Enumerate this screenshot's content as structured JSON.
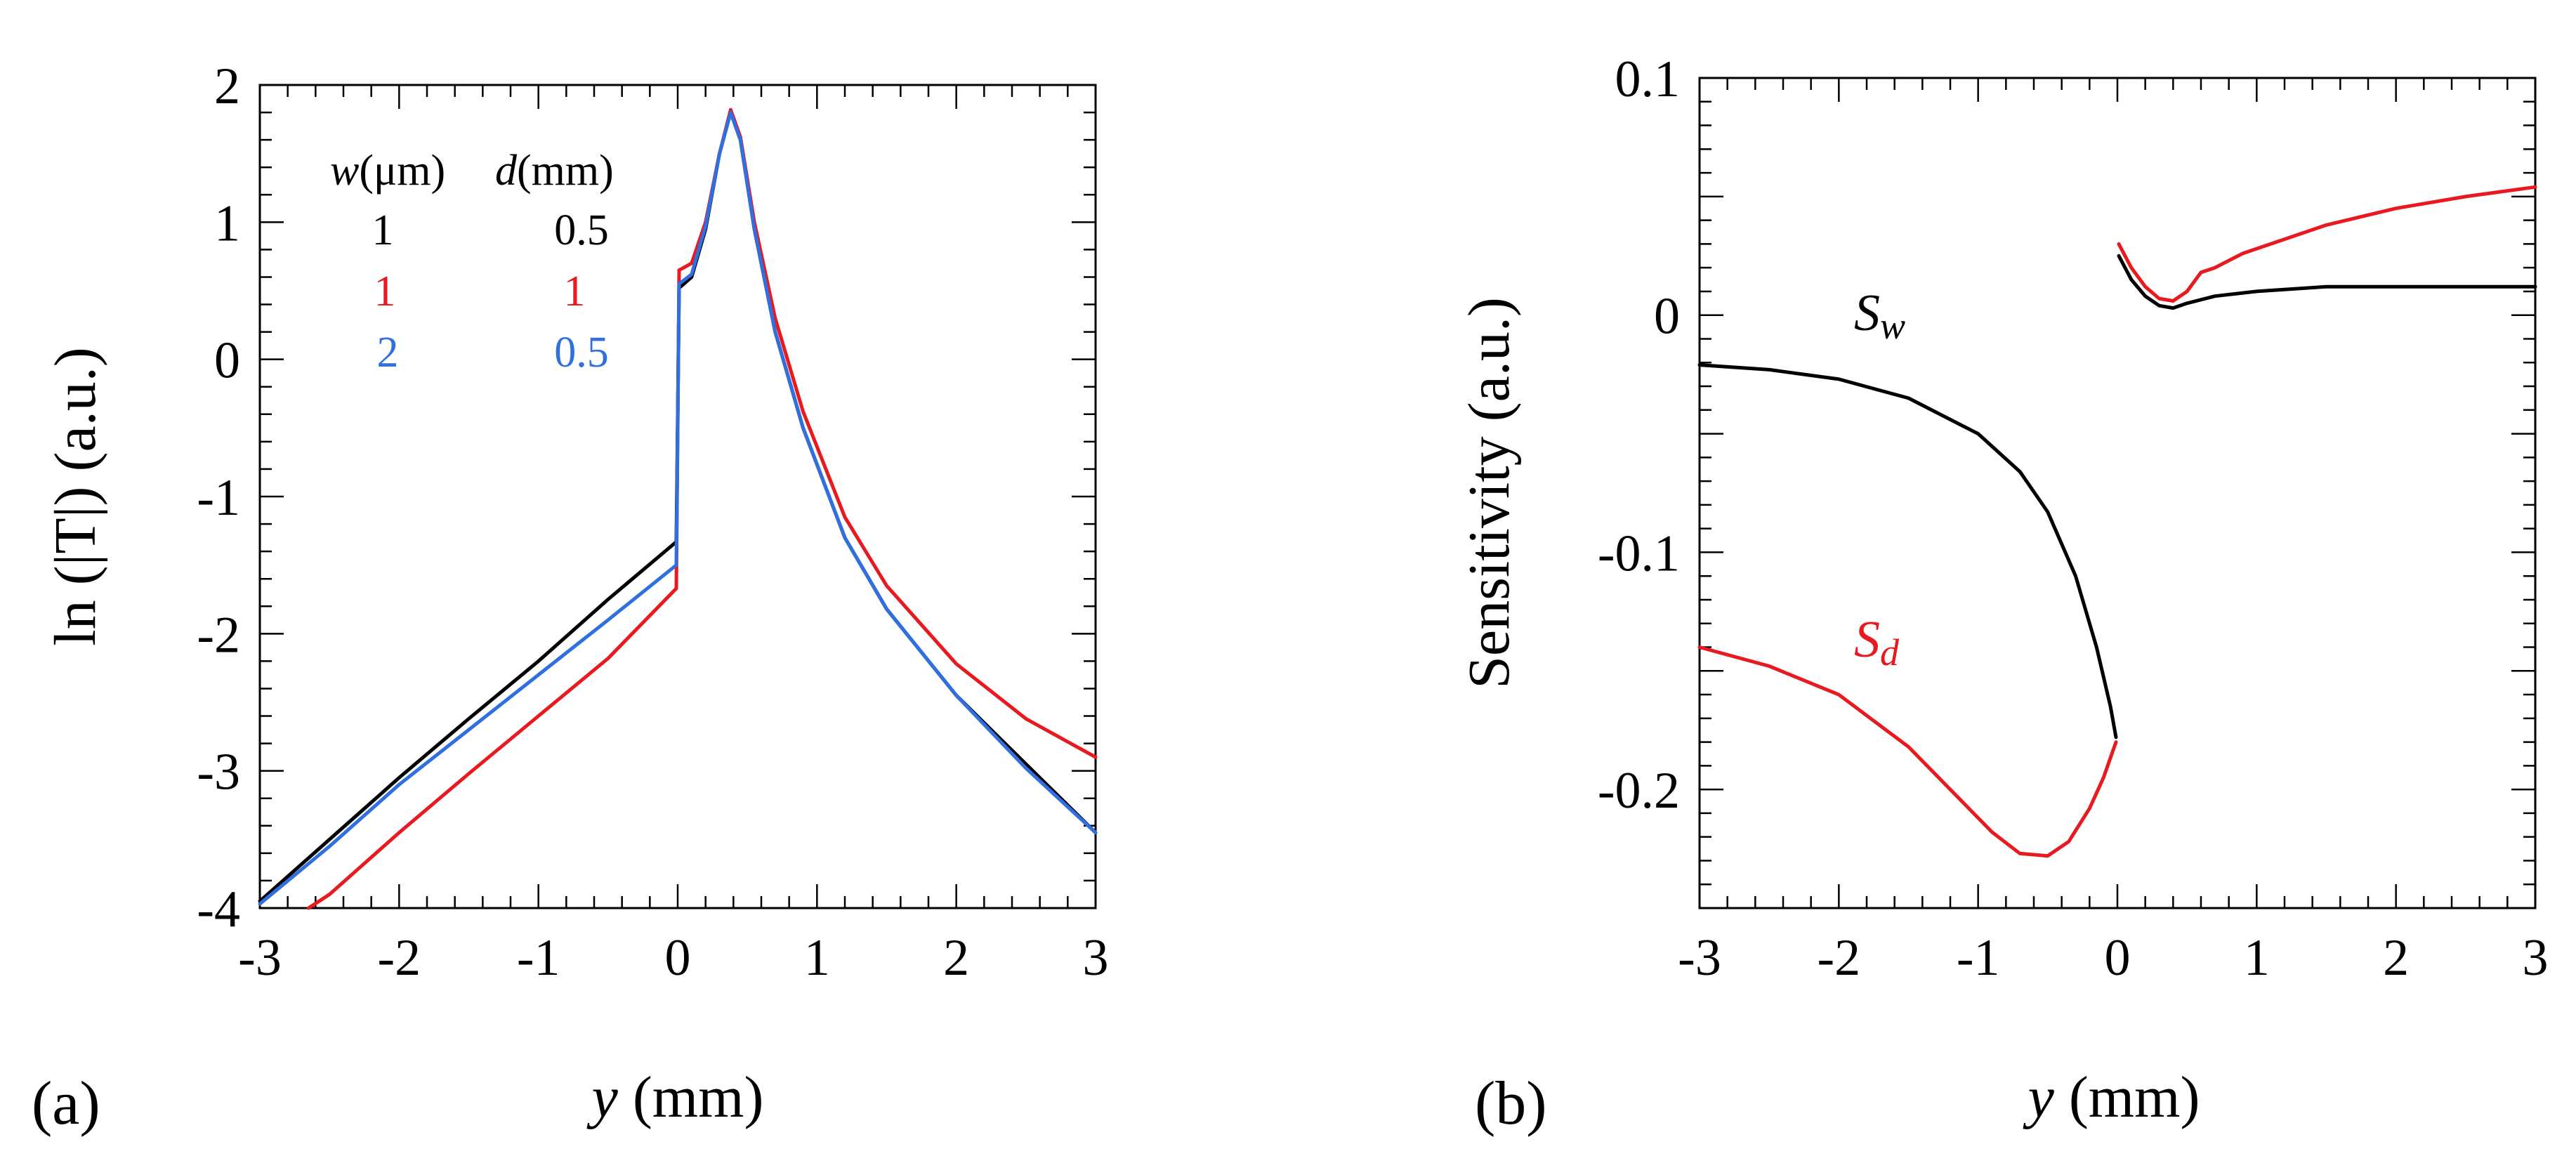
{
  "chart_data": [
    {
      "type": "line",
      "panel_label": "(a)",
      "xlabel_var": "y",
      "xlabel_unit": " (mm)",
      "ylabel": "ln (|T|) (a.u.)",
      "xlim": [
        -3,
        3
      ],
      "ylim": [
        -4,
        2
      ],
      "xticks": [
        -3,
        -2,
        -1,
        0,
        1,
        2,
        3
      ],
      "yticks": [
        -4,
        -3,
        -2,
        -1,
        0,
        1,
        2
      ],
      "legend": {
        "header_w_var": "w",
        "header_w_unit": "(μm)",
        "header_d_var": "d",
        "header_d_unit": "(mm)",
        "rows": [
          {
            "w": "1",
            "d": "0.5",
            "color": "#000000"
          },
          {
            "w": "1",
            "d": "1",
            "color": "#e8191f"
          },
          {
            "w": "2",
            "d": "0.5",
            "color": "#2f6fe0"
          }
        ]
      },
      "series": [
        {
          "name": "w=1, d=0.5",
          "color": "#000000",
          "x": [
            -3,
            -2.5,
            -2,
            -1.5,
            -1,
            -0.5,
            -0.01,
            0.01,
            0.1,
            0.2,
            0.3,
            0.38,
            0.45,
            0.55,
            0.7,
            0.9,
            1.2,
            1.5,
            2,
            2.5,
            3
          ],
          "y": [
            -3.95,
            -3.5,
            -3.05,
            -2.62,
            -2.2,
            -1.75,
            -1.33,
            0.52,
            0.6,
            0.95,
            1.5,
            1.8,
            1.6,
            0.95,
            0.2,
            -0.5,
            -1.3,
            -1.82,
            -2.45,
            -2.95,
            -3.45
          ]
        },
        {
          "name": "w=1, d=1",
          "color": "#e8191f",
          "x": [
            -2.65,
            -2.5,
            -2,
            -1.5,
            -1,
            -0.5,
            -0.01,
            0.01,
            0.1,
            0.2,
            0.3,
            0.38,
            0.45,
            0.55,
            0.7,
            0.9,
            1.2,
            1.5,
            2,
            2.5,
            3
          ],
          "y": [
            -4,
            -3.9,
            -3.45,
            -3.02,
            -2.6,
            -2.18,
            -1.67,
            0.65,
            0.7,
            1.0,
            1.5,
            1.82,
            1.62,
            1.0,
            0.3,
            -0.38,
            -1.15,
            -1.65,
            -2.22,
            -2.62,
            -2.9
          ]
        },
        {
          "name": "w=2, d=0.5",
          "color": "#2f6fe0",
          "x": [
            -3,
            -2.5,
            -2,
            -1.5,
            -1,
            -0.5,
            -0.01,
            0.01,
            0.1,
            0.2,
            0.3,
            0.38,
            0.45,
            0.55,
            0.7,
            0.9,
            1.2,
            1.5,
            2,
            2.5,
            3
          ],
          "y": [
            -3.97,
            -3.55,
            -3.1,
            -2.7,
            -2.3,
            -1.9,
            -1.5,
            0.55,
            0.62,
            0.97,
            1.5,
            1.8,
            1.6,
            0.95,
            0.2,
            -0.5,
            -1.3,
            -1.82,
            -2.45,
            -2.98,
            -3.45
          ]
        }
      ]
    },
    {
      "type": "line",
      "panel_label": "(b)",
      "xlabel_var": "y",
      "xlabel_unit": " (mm)",
      "ylabel": "Sensitivity (a.u.)",
      "xlim": [
        -3,
        3
      ],
      "ylim": [
        -0.25,
        0.1
      ],
      "xticks": [
        -3,
        -2,
        -1,
        0,
        1,
        2,
        3
      ],
      "yticks": [
        -0.2,
        -0.1,
        0,
        0.1
      ],
      "ytick_labels": [
        "-0.2",
        "-0.1",
        "0",
        "0.1"
      ],
      "annotations": [
        {
          "text": "S",
          "sub": "w",
          "x": -2.0,
          "y": 0.0,
          "color": "#000000"
        },
        {
          "text": "S",
          "sub": "d",
          "x": -2.0,
          "y": -0.138,
          "color": "#e8191f"
        }
      ],
      "series": [
        {
          "name": "S_w",
          "color": "#000000",
          "segments": [
            {
              "x": [
                -3,
                -2.5,
                -2,
                -1.5,
                -1,
                -0.7,
                -0.5,
                -0.3,
                -0.15,
                -0.05,
                -0.01
              ],
              "y": [
                -0.021,
                -0.023,
                -0.027,
                -0.035,
                -0.05,
                -0.066,
                -0.083,
                -0.11,
                -0.14,
                -0.165,
                -0.178
              ]
            },
            {
              "x": [
                0.01,
                0.1,
                0.2,
                0.3,
                0.4,
                0.5,
                0.7,
                1,
                1.5,
                2,
                2.5,
                3
              ],
              "y": [
                0.025,
                0.015,
                0.008,
                0.004,
                0.003,
                0.005,
                0.008,
                0.01,
                0.012,
                0.012,
                0.012,
                0.012
              ]
            }
          ]
        },
        {
          "name": "S_d",
          "color": "#e8191f",
          "segments": [
            {
              "x": [
                -3,
                -2.5,
                -2,
                -1.5,
                -1.2,
                -0.9,
                -0.7,
                -0.5,
                -0.35,
                -0.2,
                -0.1,
                -0.01
              ],
              "y": [
                -0.14,
                -0.148,
                -0.16,
                -0.182,
                -0.2,
                -0.218,
                -0.227,
                -0.228,
                -0.222,
                -0.208,
                -0.195,
                -0.18
              ]
            },
            {
              "x": [
                0.01,
                0.1,
                0.2,
                0.3,
                0.4,
                0.5,
                0.6,
                0.7,
                0.9,
                1.2,
                1.5,
                2,
                2.5,
                3
              ],
              "y": [
                0.03,
                0.02,
                0.012,
                0.007,
                0.006,
                0.01,
                0.018,
                0.02,
                0.026,
                0.032,
                0.038,
                0.045,
                0.05,
                0.054
              ]
            }
          ]
        }
      ]
    }
  ]
}
